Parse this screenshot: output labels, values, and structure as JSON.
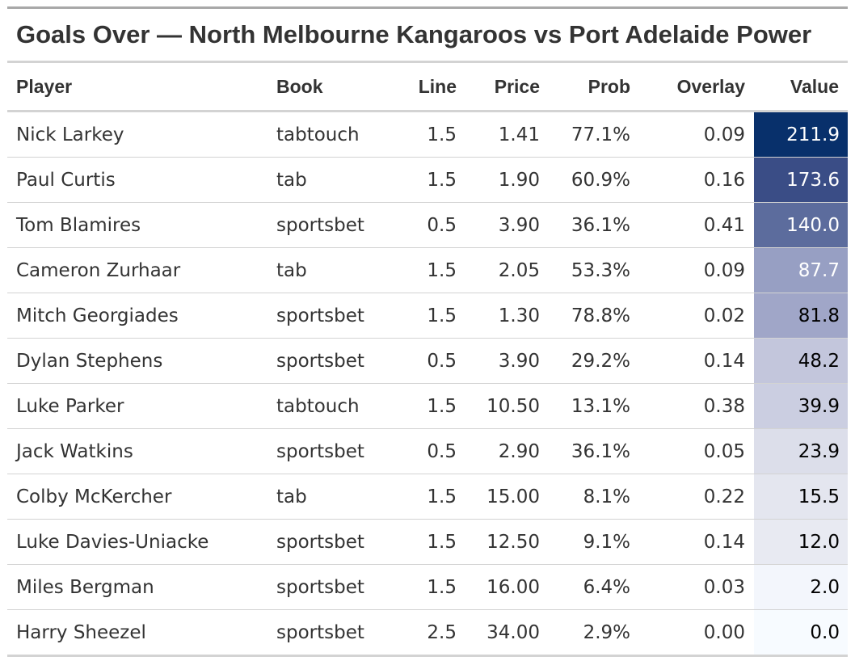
{
  "table": {
    "title": "Goals Over — North Melbourne Kangaroos vs Port Adelaide Power",
    "headers": {
      "player": "Player",
      "book": "Book",
      "line": "Line",
      "price": "Price",
      "prob": "Prob",
      "overlay": "Overlay",
      "value": "Value"
    },
    "rows": [
      {
        "player": "Nick Larkey",
        "book": "tabtouch",
        "line": "1.5",
        "price": "1.41",
        "prob": "77.1%",
        "overlay": "0.09",
        "value": "211.9",
        "value_bg": "#08306b",
        "value_fg": "#ffffff"
      },
      {
        "player": "Paul Curtis",
        "book": "tab",
        "line": "1.5",
        "price": "1.90",
        "prob": "60.9%",
        "overlay": "0.16",
        "value": "173.6",
        "value_bg": "#3a4d86",
        "value_fg": "#ffffff"
      },
      {
        "player": "Tom Blamires",
        "book": "sportsbet",
        "line": "0.5",
        "price": "3.90",
        "prob": "36.1%",
        "overlay": "0.41",
        "value": "140.0",
        "value_bg": "#5c6c9d",
        "value_fg": "#ffffff"
      },
      {
        "player": "Cameron Zurhaar",
        "book": "tab",
        "line": "1.5",
        "price": "2.05",
        "prob": "53.3%",
        "overlay": "0.09",
        "value": "87.7",
        "value_bg": "#979fc3",
        "value_fg": "#ffffff"
      },
      {
        "player": "Mitch Georgiades",
        "book": "sportsbet",
        "line": "1.5",
        "price": "1.30",
        "prob": "78.8%",
        "overlay": "0.02",
        "value": "81.8",
        "value_bg": "#a0a6c8",
        "value_fg": "#000000"
      },
      {
        "player": "Dylan Stephens",
        "book": "sportsbet",
        "line": "0.5",
        "price": "3.90",
        "prob": "29.2%",
        "overlay": "0.14",
        "value": "48.2",
        "value_bg": "#c3c6dc",
        "value_fg": "#000000"
      },
      {
        "player": "Luke Parker",
        "book": "tabtouch",
        "line": "1.5",
        "price": "10.50",
        "prob": "13.1%",
        "overlay": "0.38",
        "value": "39.9",
        "value_bg": "#cbcee1",
        "value_fg": "#000000"
      },
      {
        "player": "Jack Watkins",
        "book": "sportsbet",
        "line": "0.5",
        "price": "2.90",
        "prob": "36.1%",
        "overlay": "0.05",
        "value": "23.9",
        "value_bg": "#dcdeea",
        "value_fg": "#000000"
      },
      {
        "player": "Colby McKercher",
        "book": "tab",
        "line": "1.5",
        "price": "15.00",
        "prob": "8.1%",
        "overlay": "0.22",
        "value": "15.5",
        "value_bg": "#e4e6ef",
        "value_fg": "#000000"
      },
      {
        "player": "Luke Davies-Uniacke",
        "book": "sportsbet",
        "line": "1.5",
        "price": "12.50",
        "prob": "9.1%",
        "overlay": "0.14",
        "value": "12.0",
        "value_bg": "#e8eaf2",
        "value_fg": "#000000"
      },
      {
        "player": "Miles Bergman",
        "book": "sportsbet",
        "line": "1.5",
        "price": "16.00",
        "prob": "6.4%",
        "overlay": "0.03",
        "value": "2.0",
        "value_bg": "#f3f6fc",
        "value_fg": "#000000"
      },
      {
        "player": "Harry Sheezel",
        "book": "sportsbet",
        "line": "2.5",
        "price": "34.00",
        "prob": "2.9%",
        "overlay": "0.00",
        "value": "0.0",
        "value_bg": "#f7fbff",
        "value_fg": "#000000"
      }
    ]
  }
}
